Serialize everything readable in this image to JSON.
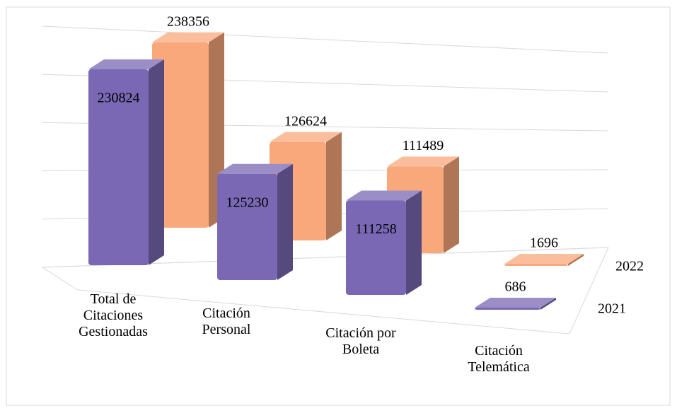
{
  "chart_data": {
    "type": "bar3d",
    "categories": [
      "Total de Citaciones Gestionadas",
      "Citación Personal",
      "Citación por Boleta",
      "Citación Telemática"
    ],
    "series": [
      {
        "name": "2021",
        "color": "#7a68b4",
        "values": [
          230824,
          125230,
          111258,
          686
        ]
      },
      {
        "name": "2022",
        "color": "#f9a87c",
        "values": [
          238356,
          126624,
          111489,
          1696
        ]
      }
    ],
    "ylim": [
      0,
      250000
    ],
    "yticks": [
      0,
      50000,
      100000,
      150000,
      200000,
      250000
    ],
    "grid": true
  }
}
